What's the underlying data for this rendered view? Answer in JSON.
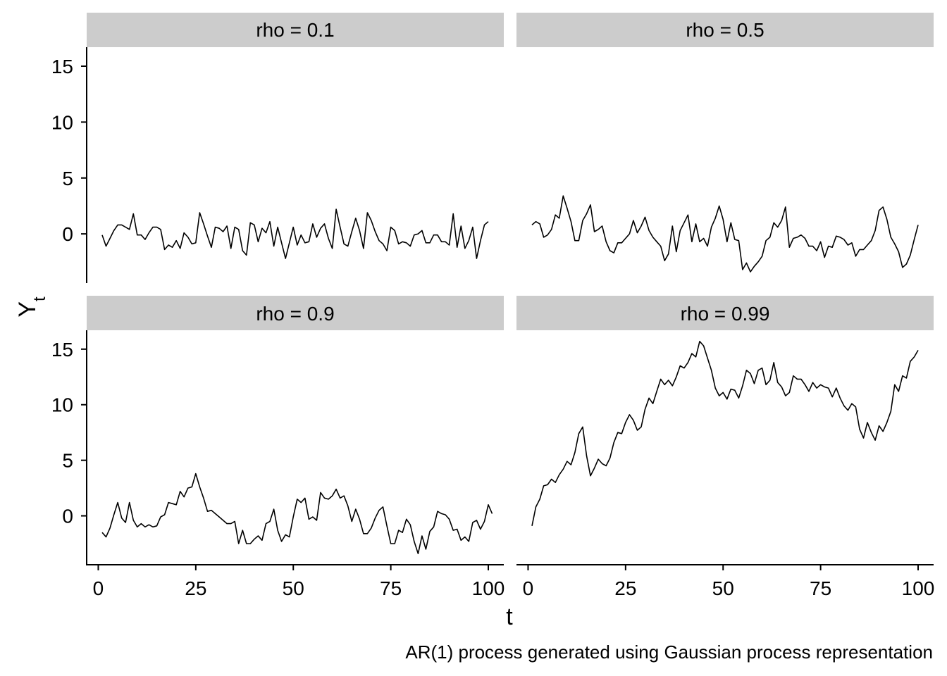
{
  "chart_data": {
    "type": "line",
    "layout": "facet-grid 2x2",
    "facet_labels": [
      "rho = 0.1",
      "rho = 0.5",
      "rho = 0.9",
      "rho = 0.99"
    ],
    "xlabel": "t",
    "ylabel_base": "Y",
    "ylabel_sub": "t",
    "caption": "AR(1) process generated using Gaussian process representation",
    "xlim": [
      1,
      100
    ],
    "ylim": [
      -4.4,
      16.7
    ],
    "x_ticks": [
      0,
      25,
      50,
      75,
      100
    ],
    "x_tick_labels": [
      "0",
      "25",
      "50",
      "75",
      "100"
    ],
    "y_ticks": [
      0,
      5,
      10,
      15
    ],
    "y_tick_labels": [
      "0",
      "5",
      "10",
      "15"
    ],
    "grid": false,
    "line_color": "#000000",
    "strip_color": "#cccccc",
    "series": [
      {
        "facet": "rho = 0.1",
        "values": [
          -0.1,
          -1.1,
          -0.4,
          0.3,
          0.8,
          0.8,
          0.6,
          0.4,
          1.8,
          -0.1,
          -0.1,
          -0.5,
          0.1,
          0.6,
          0.6,
          0.4,
          -1.4,
          -1.0,
          -1.2,
          -0.6,
          -1.3,
          0.1,
          -0.3,
          -0.9,
          -0.8,
          1.9,
          0.9,
          -0.2,
          -1.2,
          0.6,
          0.5,
          0.2,
          0.7,
          -1.3,
          0.6,
          0.4,
          -1.5,
          -1.9,
          1.0,
          0.8,
          -0.7,
          0.5,
          0.1,
          1.1,
          -1.1,
          0.6,
          -0.8,
          -2.2,
          -0.8,
          0.6,
          -1.0,
          -0.1,
          -0.8,
          -0.7,
          0.9,
          -0.3,
          0.5,
          0.9,
          -0.4,
          -1.3,
          2.2,
          0.6,
          -0.9,
          -1.1,
          0.2,
          1.4,
          0.3,
          -1.3,
          1.9,
          1.2,
          0.2,
          -0.6,
          -0.9,
          -1.5,
          0.6,
          0.3,
          -0.9,
          -0.7,
          -0.8,
          -1.1,
          -0.1,
          0.0,
          0.3,
          -0.8,
          -0.8,
          -0.1,
          -0.1,
          -0.7,
          -0.7,
          -1.0,
          1.8,
          -1.2,
          0.7,
          -1.3,
          -0.6,
          0.6,
          -2.2,
          -0.6,
          0.8,
          1.1
        ]
      },
      {
        "facet": "rho = 0.5",
        "values": [
          0.8,
          1.1,
          0.9,
          -0.3,
          -0.1,
          0.4,
          1.7,
          1.4,
          3.4,
          2.3,
          1.1,
          -0.6,
          -0.6,
          1.2,
          1.8,
          2.6,
          0.2,
          0.4,
          0.7,
          -0.7,
          -1.5,
          -1.7,
          -0.8,
          -0.8,
          -0.4,
          0.0,
          1.2,
          0.1,
          0.7,
          1.5,
          0.3,
          -0.3,
          -0.7,
          -1.1,
          -2.4,
          -1.8,
          0.7,
          -1.6,
          0.3,
          1.0,
          1.7,
          -0.7,
          0.9,
          -0.7,
          -0.4,
          -1.1,
          0.6,
          1.4,
          2.5,
          1.3,
          -0.7,
          1.0,
          -0.5,
          -0.6,
          -3.2,
          -2.6,
          -3.4,
          -2.9,
          -2.5,
          -2.0,
          -0.6,
          -0.3,
          1.0,
          0.6,
          1.2,
          2.4,
          -1.2,
          -0.4,
          -0.3,
          -0.1,
          -0.4,
          -1.1,
          -1.1,
          -1.5,
          -0.7,
          -2.1,
          -1.1,
          -1.2,
          -0.2,
          -0.3,
          -0.5,
          -1.0,
          -0.8,
          -2.0,
          -1.4,
          -1.4,
          -1.0,
          -0.6,
          0.3,
          2.1,
          2.4,
          1.3,
          -0.3,
          -0.9,
          -1.6,
          -3.0,
          -2.7,
          -1.9,
          -0.5,
          0.8
        ]
      },
      {
        "facet": "rho = 0.9",
        "values": [
          -1.5,
          -1.9,
          -1.1,
          0.1,
          1.2,
          -0.2,
          -0.6,
          1.2,
          -0.4,
          -1.0,
          -0.7,
          -1.0,
          -0.8,
          -1.0,
          -0.9,
          -0.1,
          0.1,
          1.2,
          1.1,
          1.0,
          2.2,
          1.7,
          2.5,
          2.6,
          3.8,
          2.6,
          1.6,
          0.4,
          0.5,
          0.2,
          -0.1,
          -0.4,
          -0.7,
          -0.7,
          -0.5,
          -2.5,
          -1.3,
          -2.5,
          -2.5,
          -2.1,
          -1.8,
          -2.2,
          -0.7,
          -0.5,
          0.6,
          -1.3,
          -2.3,
          -1.7,
          -1.9,
          -0.1,
          1.5,
          1.2,
          1.6,
          -0.3,
          -0.1,
          -0.4,
          2.1,
          1.6,
          1.5,
          1.8,
          2.4,
          1.6,
          1.8,
          0.9,
          -0.5,
          0.6,
          -0.3,
          -1.6,
          -1.6,
          -1.1,
          -0.2,
          0.5,
          0.8,
          -0.9,
          -2.5,
          -2.5,
          -1.3,
          -1.5,
          -0.3,
          -0.8,
          -2.3,
          -3.4,
          -1.8,
          -3.0,
          -1.4,
          -1.0,
          0.4,
          0.2,
          0.1,
          -0.3,
          -1.3,
          -1.2,
          -2.2,
          -1.9,
          -2.3,
          -0.6,
          -0.4,
          -1.2,
          -0.5,
          1.0,
          0.2
        ]
      },
      {
        "facet": "rho = 0.99",
        "values": [
          -0.9,
          0.8,
          1.5,
          2.7,
          2.8,
          3.3,
          3.0,
          3.7,
          4.2,
          4.9,
          4.6,
          5.7,
          7.4,
          8.0,
          5.4,
          3.6,
          4.3,
          5.1,
          4.7,
          4.5,
          5.2,
          6.6,
          7.5,
          7.4,
          8.4,
          9.1,
          8.6,
          7.7,
          8.0,
          9.6,
          10.6,
          10.1,
          11.2,
          12.3,
          11.8,
          12.2,
          11.7,
          12.5,
          13.5,
          13.3,
          13.8,
          14.6,
          14.3,
          15.7,
          15.3,
          14.2,
          13.1,
          11.5,
          10.8,
          11.1,
          10.5,
          11.4,
          11.3,
          10.6,
          11.7,
          13.1,
          12.8,
          11.9,
          13.1,
          13.3,
          11.8,
          12.2,
          13.8,
          12.0,
          11.6,
          10.8,
          11.1,
          12.6,
          12.3,
          12.3,
          11.8,
          11.2,
          12.0,
          11.5,
          11.8,
          11.6,
          11.5,
          10.7,
          11.5,
          10.6,
          9.9,
          9.5,
          10.1,
          9.8,
          7.8,
          7.0,
          8.4,
          7.5,
          6.8,
          8.1,
          7.6,
          8.4,
          9.4,
          11.8,
          11.2,
          12.6,
          12.4,
          13.9,
          14.3,
          14.9
        ]
      }
    ]
  }
}
